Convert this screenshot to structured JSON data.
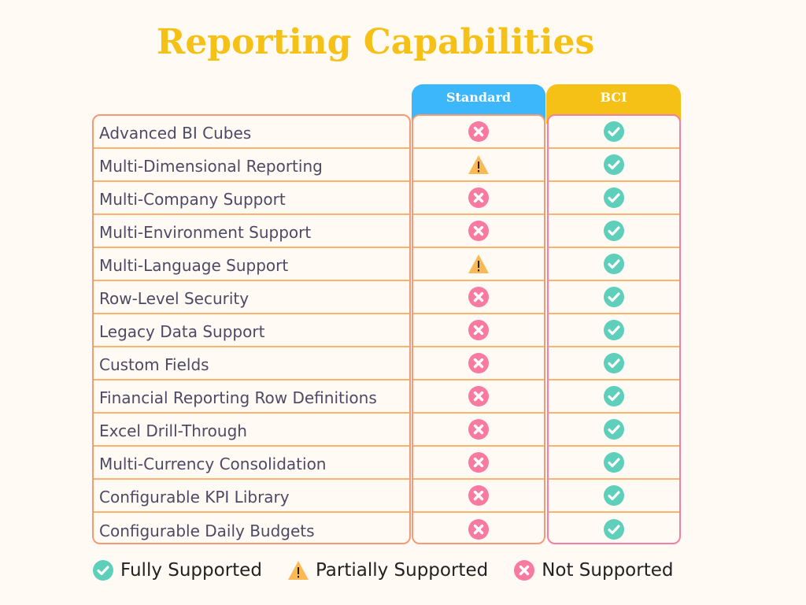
{
  "title": "Reporting Capabilities",
  "columns": {
    "standard": "Standard",
    "bci": "BCI"
  },
  "colors": {
    "title": "#f5c116",
    "standard": "#3db7fb",
    "bci": "#f5c116",
    "full": "#5ecfba",
    "partial": "#fbb955",
    "none": "#f87aa1"
  },
  "rows": [
    {
      "feature": "Advanced BI Cubes",
      "standard": "none",
      "bci": "full"
    },
    {
      "feature": "Multi-Dimensional Reporting",
      "standard": "partial",
      "bci": "full"
    },
    {
      "feature": "Multi-Company Support",
      "standard": "none",
      "bci": "full"
    },
    {
      "feature": "Multi-Environment Support",
      "standard": "none",
      "bci": "full"
    },
    {
      "feature": "Multi-Language Support",
      "standard": "partial",
      "bci": "full"
    },
    {
      "feature": "Row-Level Security",
      "standard": "none",
      "bci": "full"
    },
    {
      "feature": "Legacy Data Support",
      "standard": "none",
      "bci": "full"
    },
    {
      "feature": "Custom Fields",
      "standard": "none",
      "bci": "full"
    },
    {
      "feature": "Financial Reporting Row Definitions",
      "standard": "none",
      "bci": "full"
    },
    {
      "feature": "Excel Drill-Through",
      "standard": "none",
      "bci": "full"
    },
    {
      "feature": "Multi-Currency Consolidation",
      "standard": "none",
      "bci": "full"
    },
    {
      "feature": "Configurable KPI Library",
      "standard": "none",
      "bci": "full"
    },
    {
      "feature": "Configurable Daily Budgets",
      "standard": "none",
      "bci": "full"
    }
  ],
  "legend": {
    "full": "Fully Supported",
    "partial": "Partially Supported",
    "none": "Not Supported"
  }
}
